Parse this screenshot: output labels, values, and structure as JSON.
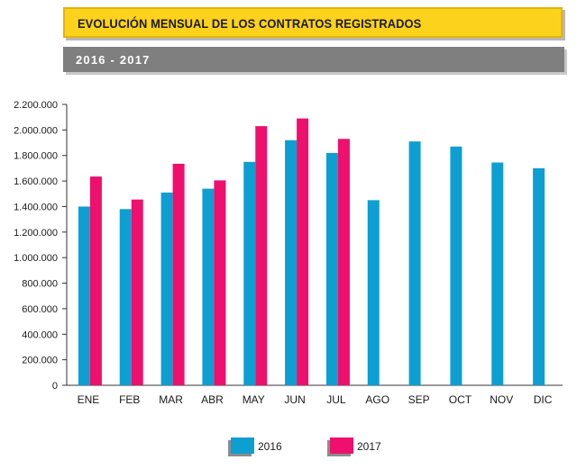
{
  "header": {
    "title": "EVOLUCIÓN MENSUAL DE LOS CONTRATOS REGISTRADOS",
    "subtitle": "2016 - 2017"
  },
  "colors": {
    "s2016": "#0e9fd2",
    "s2017": "#ef0f6d",
    "title_bg": "#fdd21c",
    "subtitle_bg": "#7f7f7f"
  },
  "chart_data": {
    "type": "bar",
    "title": "EVOLUCIÓN MENSUAL DE LOS CONTRATOS REGISTRADOS",
    "subtitle": "2016 - 2017",
    "categories": [
      "ENE",
      "FEB",
      "MAR",
      "ABR",
      "MAY",
      "JUN",
      "JUL",
      "AGO",
      "SEP",
      "OCT",
      "NOV",
      "DIC"
    ],
    "series": [
      {
        "name": "2016",
        "values": [
          1400000,
          1380000,
          1510000,
          1540000,
          1750000,
          1920000,
          1820000,
          1450000,
          1910000,
          1870000,
          1745000,
          1700000
        ]
      },
      {
        "name": "2017",
        "values": [
          1635000,
          1455000,
          1735000,
          1605000,
          2030000,
          2090000,
          1930000,
          null,
          null,
          null,
          null,
          null
        ]
      }
    ],
    "yticks": [
      "0",
      "200.000",
      "400.000",
      "600.000",
      "800.000",
      "1.000.000",
      "1.200.000",
      "1.400.000",
      "1.600.000",
      "1.800.000",
      "2.000.000",
      "2.200.000"
    ],
    "ylim": [
      0,
      2200000
    ],
    "xlabel": "",
    "ylabel": "",
    "legend_position": "bottom"
  }
}
